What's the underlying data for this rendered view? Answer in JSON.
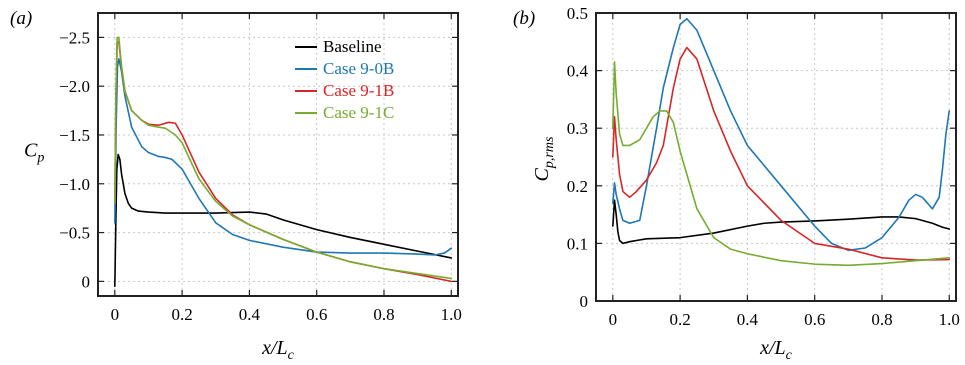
{
  "chart_data": [
    {
      "type": "line",
      "panel_label": "(a)",
      "xlabel": "x/L_c",
      "ylabel": "C_p",
      "xlim": [
        -0.05,
        1.02
      ],
      "ylim": [
        0.15,
        -2.75
      ],
      "y_inverted": true,
      "xticks": [
        0,
        0.2,
        0.4,
        0.6,
        0.8,
        1.0
      ],
      "xtick_labels": [
        "0",
        "0.2",
        "0.4",
        "0.6",
        "0.8",
        "1.0"
      ],
      "yticks": [
        0,
        -0.5,
        -1.0,
        -1.5,
        -2.0,
        -2.5
      ],
      "ytick_labels": [
        "0",
        "−0.5",
        "−1.0",
        "−1.5",
        "−2.0",
        "−2.5"
      ],
      "grid": true,
      "legend": "top-right",
      "series": [
        {
          "name": "Baseline",
          "color": "#000000",
          "x": [
            0,
            0.003,
            0.006,
            0.01,
            0.015,
            0.02,
            0.03,
            0.04,
            0.05,
            0.07,
            0.1,
            0.15,
            0.2,
            0.3,
            0.4,
            0.45,
            0.5,
            0.6,
            0.7,
            0.8,
            0.9,
            1.0
          ],
          "y": [
            0.05,
            -0.6,
            -1.15,
            -1.3,
            -1.25,
            -1.1,
            -0.9,
            -0.8,
            -0.75,
            -0.72,
            -0.71,
            -0.7,
            -0.7,
            -0.7,
            -0.71,
            -0.69,
            -0.63,
            -0.53,
            -0.45,
            -0.38,
            -0.31,
            -0.24
          ]
        },
        {
          "name": "Case 9-0B",
          "color": "#1f77b4",
          "x": [
            0,
            0.004,
            0.008,
            0.012,
            0.02,
            0.03,
            0.05,
            0.08,
            0.1,
            0.13,
            0.15,
            0.17,
            0.2,
            0.25,
            0.3,
            0.35,
            0.4,
            0.5,
            0.6,
            0.7,
            0.8,
            0.9,
            0.95,
            0.98,
            1.0
          ],
          "y": [
            -0.6,
            -1.6,
            -2.2,
            -2.28,
            -2.15,
            -1.9,
            -1.58,
            -1.38,
            -1.32,
            -1.28,
            -1.27,
            -1.25,
            -1.15,
            -0.85,
            -0.6,
            -0.48,
            -0.42,
            -0.35,
            -0.3,
            -0.29,
            -0.29,
            -0.28,
            -0.27,
            -0.29,
            -0.34
          ]
        },
        {
          "name": "Case 9-1B",
          "color": "#d62728",
          "x": [
            0,
            0.003,
            0.007,
            0.012,
            0.02,
            0.03,
            0.05,
            0.08,
            0.1,
            0.13,
            0.16,
            0.18,
            0.2,
            0.25,
            0.3,
            0.35,
            0.4,
            0.5,
            0.6,
            0.7,
            0.8,
            0.9,
            1.0
          ],
          "y": [
            -0.8,
            -1.8,
            -2.45,
            -2.45,
            -2.2,
            -1.95,
            -1.75,
            -1.65,
            -1.61,
            -1.6,
            -1.63,
            -1.62,
            -1.5,
            -1.12,
            -0.85,
            -0.68,
            -0.58,
            -0.43,
            -0.3,
            -0.2,
            -0.13,
            -0.07,
            0.0
          ]
        },
        {
          "name": "Case 9-1C",
          "color": "#77ac30",
          "x": [
            0,
            0.003,
            0.007,
            0.012,
            0.02,
            0.03,
            0.05,
            0.08,
            0.1,
            0.13,
            0.15,
            0.18,
            0.2,
            0.25,
            0.3,
            0.35,
            0.4,
            0.5,
            0.6,
            0.7,
            0.8,
            0.9,
            1.0
          ],
          "y": [
            -0.8,
            -1.9,
            -2.5,
            -2.5,
            -2.2,
            -1.95,
            -1.75,
            -1.65,
            -1.6,
            -1.58,
            -1.57,
            -1.5,
            -1.42,
            -1.05,
            -0.82,
            -0.67,
            -0.58,
            -0.43,
            -0.3,
            -0.2,
            -0.13,
            -0.08,
            -0.03
          ]
        }
      ]
    },
    {
      "type": "line",
      "panel_label": "(b)",
      "xlabel": "x/L_c",
      "ylabel": "C_p,rms",
      "xlim": [
        -0.05,
        1.02
      ],
      "ylim": [
        0,
        0.5
      ],
      "xticks": [
        0,
        0.2,
        0.4,
        0.6,
        0.8,
        1.0
      ],
      "xtick_labels": [
        "0",
        "0.2",
        "0.4",
        "0.6",
        "0.8",
        "1.0"
      ],
      "yticks": [
        0,
        0.1,
        0.2,
        0.3,
        0.4,
        0.5
      ],
      "ytick_labels": [
        "0",
        "0.1",
        "0.2",
        "0.3",
        "0.4",
        "0.5"
      ],
      "grid": true,
      "series": [
        {
          "name": "Baseline",
          "color": "#000000",
          "x": [
            0,
            0.005,
            0.01,
            0.015,
            0.02,
            0.03,
            0.05,
            0.07,
            0.1,
            0.2,
            0.3,
            0.4,
            0.45,
            0.5,
            0.6,
            0.7,
            0.8,
            0.85,
            0.9,
            0.95,
            0.98,
            1.0
          ],
          "y": [
            0.13,
            0.175,
            0.15,
            0.12,
            0.105,
            0.1,
            0.103,
            0.105,
            0.108,
            0.11,
            0.118,
            0.13,
            0.135,
            0.137,
            0.139,
            0.142,
            0.146,
            0.146,
            0.143,
            0.135,
            0.128,
            0.125
          ]
        },
        {
          "name": "Case 9-0B",
          "color": "#1f77b4",
          "x": [
            0,
            0.005,
            0.01,
            0.02,
            0.03,
            0.05,
            0.08,
            0.1,
            0.13,
            0.15,
            0.18,
            0.2,
            0.22,
            0.25,
            0.3,
            0.35,
            0.4,
            0.5,
            0.6,
            0.65,
            0.7,
            0.75,
            0.8,
            0.85,
            0.88,
            0.9,
            0.92,
            0.95,
            0.97,
            0.98,
            0.99,
            1.0
          ],
          "y": [
            0.17,
            0.205,
            0.185,
            0.16,
            0.14,
            0.135,
            0.14,
            0.2,
            0.3,
            0.37,
            0.44,
            0.48,
            0.49,
            0.47,
            0.4,
            0.33,
            0.27,
            0.2,
            0.13,
            0.1,
            0.088,
            0.092,
            0.11,
            0.145,
            0.175,
            0.185,
            0.18,
            0.16,
            0.18,
            0.23,
            0.29,
            0.33
          ]
        },
        {
          "name": "Case 9-1B",
          "color": "#d62728",
          "x": [
            0,
            0.005,
            0.01,
            0.02,
            0.03,
            0.05,
            0.07,
            0.1,
            0.13,
            0.15,
            0.18,
            0.2,
            0.22,
            0.25,
            0.3,
            0.35,
            0.4,
            0.5,
            0.6,
            0.7,
            0.8,
            0.9,
            1.0
          ],
          "y": [
            0.25,
            0.32,
            0.28,
            0.22,
            0.19,
            0.18,
            0.19,
            0.21,
            0.24,
            0.27,
            0.37,
            0.42,
            0.44,
            0.42,
            0.33,
            0.26,
            0.2,
            0.14,
            0.1,
            0.09,
            0.075,
            0.071,
            0.072
          ]
        },
        {
          "name": "Case 9-1C",
          "color": "#77ac30",
          "x": [
            0,
            0.005,
            0.01,
            0.02,
            0.03,
            0.05,
            0.08,
            0.1,
            0.12,
            0.14,
            0.16,
            0.18,
            0.2,
            0.25,
            0.3,
            0.35,
            0.4,
            0.5,
            0.6,
            0.7,
            0.8,
            0.9,
            1.0
          ],
          "y": [
            0.3,
            0.415,
            0.36,
            0.29,
            0.27,
            0.27,
            0.28,
            0.3,
            0.32,
            0.33,
            0.33,
            0.31,
            0.26,
            0.16,
            0.11,
            0.09,
            0.082,
            0.07,
            0.064,
            0.062,
            0.065,
            0.07,
            0.075
          ]
        }
      ]
    }
  ],
  "legend": {
    "entries": [
      "Baseline",
      "Case 9-0B",
      "Case 9-1B",
      "Case 9-1C"
    ]
  }
}
